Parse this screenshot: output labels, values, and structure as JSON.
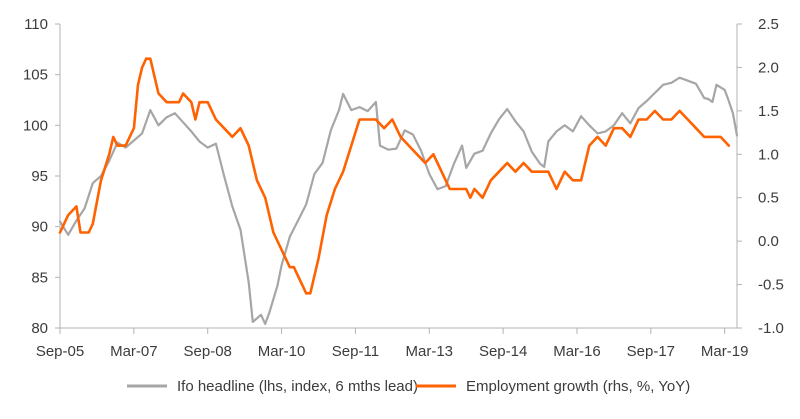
{
  "chart_data": {
    "type": "line",
    "title": "",
    "x_tick_labels": [
      "Sep-05",
      "Mar-07",
      "Sep-08",
      "Mar-10",
      "Sep-11",
      "Mar-13",
      "Sep-14",
      "Mar-16",
      "Sep-17",
      "Mar-19"
    ],
    "x_range": [
      "Sep-05",
      "Jun-19"
    ],
    "y_left": {
      "ticks": [
        "80",
        "85",
        "90",
        "95",
        "100",
        "105",
        "110"
      ],
      "ylim": [
        80,
        110
      ]
    },
    "y_right": {
      "ticks": [
        "-1.0",
        "-0.5",
        "0.0",
        "0.5",
        "1.0",
        "1.5",
        "2.0",
        "2.5"
      ],
      "ylim": [
        -1.0,
        2.5
      ]
    },
    "grid": false,
    "legend_position": "bottom",
    "series": [
      {
        "name": "Ifo headline (lhs, index, 6 mths lead)",
        "axis": "left",
        "color": "#a6a6a6",
        "points": [
          [
            "2005-09",
            90.5
          ],
          [
            "2005-11",
            89.2
          ],
          [
            "2006-01",
            90.6
          ],
          [
            "2006-03",
            91.8
          ],
          [
            "2006-05",
            94.3
          ],
          [
            "2006-07",
            95.0
          ],
          [
            "2006-09",
            96.5
          ],
          [
            "2006-11",
            98.3
          ],
          [
            "2007-01",
            97.8
          ],
          [
            "2007-03",
            98.5
          ],
          [
            "2007-05",
            99.2
          ],
          [
            "2007-07",
            101.5
          ],
          [
            "2007-09",
            100.0
          ],
          [
            "2007-11",
            100.8
          ],
          [
            "2008-01",
            101.2
          ],
          [
            "2008-03",
            100.3
          ],
          [
            "2008-05",
            99.4
          ],
          [
            "2008-07",
            98.4
          ],
          [
            "2008-09",
            97.8
          ],
          [
            "2008-11",
            98.2
          ],
          [
            "2009-01",
            95.0
          ],
          [
            "2009-03",
            92.0
          ],
          [
            "2009-05",
            89.7
          ],
          [
            "2009-07",
            84.5
          ],
          [
            "2009-08",
            80.6
          ],
          [
            "2009-10",
            81.3
          ],
          [
            "2009-11",
            80.4
          ],
          [
            "2009-12",
            81.5
          ],
          [
            "2010-02",
            84.2
          ],
          [
            "2010-03",
            86.2
          ],
          [
            "2010-05",
            89.0
          ],
          [
            "2010-07",
            90.6
          ],
          [
            "2010-09",
            92.2
          ],
          [
            "2010-11",
            95.2
          ],
          [
            "2011-01",
            96.3
          ],
          [
            "2011-03",
            99.5
          ],
          [
            "2011-05",
            101.5
          ],
          [
            "2011-06",
            103.1
          ],
          [
            "2011-08",
            101.5
          ],
          [
            "2011-10",
            101.8
          ],
          [
            "2011-12",
            101.4
          ],
          [
            "2012-02",
            102.3
          ],
          [
            "2012-03",
            98.0
          ],
          [
            "2012-05",
            97.6
          ],
          [
            "2012-07",
            97.7
          ],
          [
            "2012-09",
            99.5
          ],
          [
            "2012-11",
            99.1
          ],
          [
            "2013-01",
            97.5
          ],
          [
            "2013-03",
            95.2
          ],
          [
            "2013-05",
            93.7
          ],
          [
            "2013-07",
            94.0
          ],
          [
            "2013-09",
            96.2
          ],
          [
            "2013-11",
            98.0
          ],
          [
            "2013-12",
            95.8
          ],
          [
            "2014-02",
            97.2
          ],
          [
            "2014-04",
            97.5
          ],
          [
            "2014-06",
            99.2
          ],
          [
            "2014-08",
            100.6
          ],
          [
            "2014-10",
            101.6
          ],
          [
            "2014-12",
            100.4
          ],
          [
            "2015-02",
            99.4
          ],
          [
            "2015-04",
            97.4
          ],
          [
            "2015-06",
            96.2
          ],
          [
            "2015-07",
            95.9
          ],
          [
            "2015-08",
            98.4
          ],
          [
            "2015-10",
            99.4
          ],
          [
            "2015-12",
            100.0
          ],
          [
            "2016-02",
            99.4
          ],
          [
            "2016-04",
            100.9
          ],
          [
            "2016-06",
            100.0
          ],
          [
            "2016-08",
            99.2
          ],
          [
            "2016-10",
            99.4
          ],
          [
            "2016-12",
            100.0
          ],
          [
            "2017-02",
            101.2
          ],
          [
            "2017-04",
            100.2
          ],
          [
            "2017-06",
            101.7
          ],
          [
            "2017-08",
            102.4
          ],
          [
            "2017-10",
            103.2
          ],
          [
            "2017-12",
            104.0
          ],
          [
            "2018-02",
            104.2
          ],
          [
            "2018-04",
            104.7
          ],
          [
            "2018-06",
            104.4
          ],
          [
            "2018-08",
            104.1
          ],
          [
            "2018-10",
            102.7
          ],
          [
            "2018-11",
            102.6
          ],
          [
            "2018-12",
            102.3
          ],
          [
            "2019-01",
            104.0
          ],
          [
            "2019-03",
            103.5
          ],
          [
            "2019-04",
            102.4
          ],
          [
            "2019-05",
            101.2
          ],
          [
            "2019-06",
            99.0
          ]
        ]
      },
      {
        "name": "Employment growth (rhs, %, YoY)",
        "axis": "right",
        "color": "#ff6200",
        "points": [
          [
            "2005-09",
            0.1
          ],
          [
            "2005-11",
            0.3
          ],
          [
            "2006-01",
            0.4
          ],
          [
            "2006-02",
            0.1
          ],
          [
            "2006-04",
            0.1
          ],
          [
            "2006-05",
            0.2
          ],
          [
            "2006-07",
            0.7
          ],
          [
            "2006-09",
            1.0
          ],
          [
            "2006-10",
            1.2
          ],
          [
            "2006-11",
            1.1
          ],
          [
            "2007-01",
            1.1
          ],
          [
            "2007-03",
            1.3
          ],
          [
            "2007-04",
            1.8
          ],
          [
            "2007-05",
            2.0
          ],
          [
            "2007-06",
            2.1
          ],
          [
            "2007-07",
            2.1
          ],
          [
            "2007-09",
            1.7
          ],
          [
            "2007-11",
            1.6
          ],
          [
            "2008-01",
            1.6
          ],
          [
            "2008-02",
            1.6
          ],
          [
            "2008-03",
            1.7
          ],
          [
            "2008-05",
            1.6
          ],
          [
            "2008-06",
            1.4
          ],
          [
            "2008-07",
            1.6
          ],
          [
            "2008-09",
            1.6
          ],
          [
            "2008-11",
            1.4
          ],
          [
            "2009-01",
            1.3
          ],
          [
            "2009-03",
            1.2
          ],
          [
            "2009-05",
            1.3
          ],
          [
            "2009-07",
            1.1
          ],
          [
            "2009-09",
            0.7
          ],
          [
            "2009-11",
            0.5
          ],
          [
            "2010-01",
            0.1
          ],
          [
            "2010-03",
            -0.1
          ],
          [
            "2010-05",
            -0.3
          ],
          [
            "2010-06",
            -0.3
          ],
          [
            "2010-07",
            -0.4
          ],
          [
            "2010-09",
            -0.6
          ],
          [
            "2010-10",
            -0.6
          ],
          [
            "2010-12",
            -0.2
          ],
          [
            "2011-02",
            0.3
          ],
          [
            "2011-04",
            0.6
          ],
          [
            "2011-06",
            0.8
          ],
          [
            "2011-08",
            1.1
          ],
          [
            "2011-10",
            1.4
          ],
          [
            "2011-12",
            1.4
          ],
          [
            "2012-02",
            1.4
          ],
          [
            "2012-04",
            1.3
          ],
          [
            "2012-06",
            1.4
          ],
          [
            "2012-08",
            1.2
          ],
          [
            "2012-10",
            1.1
          ],
          [
            "2012-12",
            1.0
          ],
          [
            "2013-02",
            0.9
          ],
          [
            "2013-04",
            1.0
          ],
          [
            "2013-06",
            0.8
          ],
          [
            "2013-08",
            0.6
          ],
          [
            "2013-10",
            0.6
          ],
          [
            "2013-12",
            0.6
          ],
          [
            "2014-01",
            0.5
          ],
          [
            "2014-02",
            0.6
          ],
          [
            "2014-04",
            0.5
          ],
          [
            "2014-06",
            0.7
          ],
          [
            "2014-08",
            0.8
          ],
          [
            "2014-10",
            0.9
          ],
          [
            "2014-12",
            0.8
          ],
          [
            "2015-02",
            0.9
          ],
          [
            "2015-04",
            0.8
          ],
          [
            "2015-06",
            0.8
          ],
          [
            "2015-08",
            0.8
          ],
          [
            "2015-10",
            0.6
          ],
          [
            "2015-12",
            0.8
          ],
          [
            "2016-02",
            0.7
          ],
          [
            "2016-04",
            0.7
          ],
          [
            "2016-06",
            1.1
          ],
          [
            "2016-08",
            1.2
          ],
          [
            "2016-10",
            1.1
          ],
          [
            "2016-12",
            1.3
          ],
          [
            "2017-02",
            1.3
          ],
          [
            "2017-04",
            1.2
          ],
          [
            "2017-06",
            1.4
          ],
          [
            "2017-08",
            1.4
          ],
          [
            "2017-10",
            1.5
          ],
          [
            "2017-12",
            1.4
          ],
          [
            "2018-02",
            1.4
          ],
          [
            "2018-04",
            1.5
          ],
          [
            "2018-06",
            1.4
          ],
          [
            "2018-08",
            1.3
          ],
          [
            "2018-10",
            1.2
          ],
          [
            "2018-12",
            1.2
          ],
          [
            "2019-02",
            1.2
          ],
          [
            "2019-04",
            1.1
          ]
        ]
      }
    ]
  }
}
